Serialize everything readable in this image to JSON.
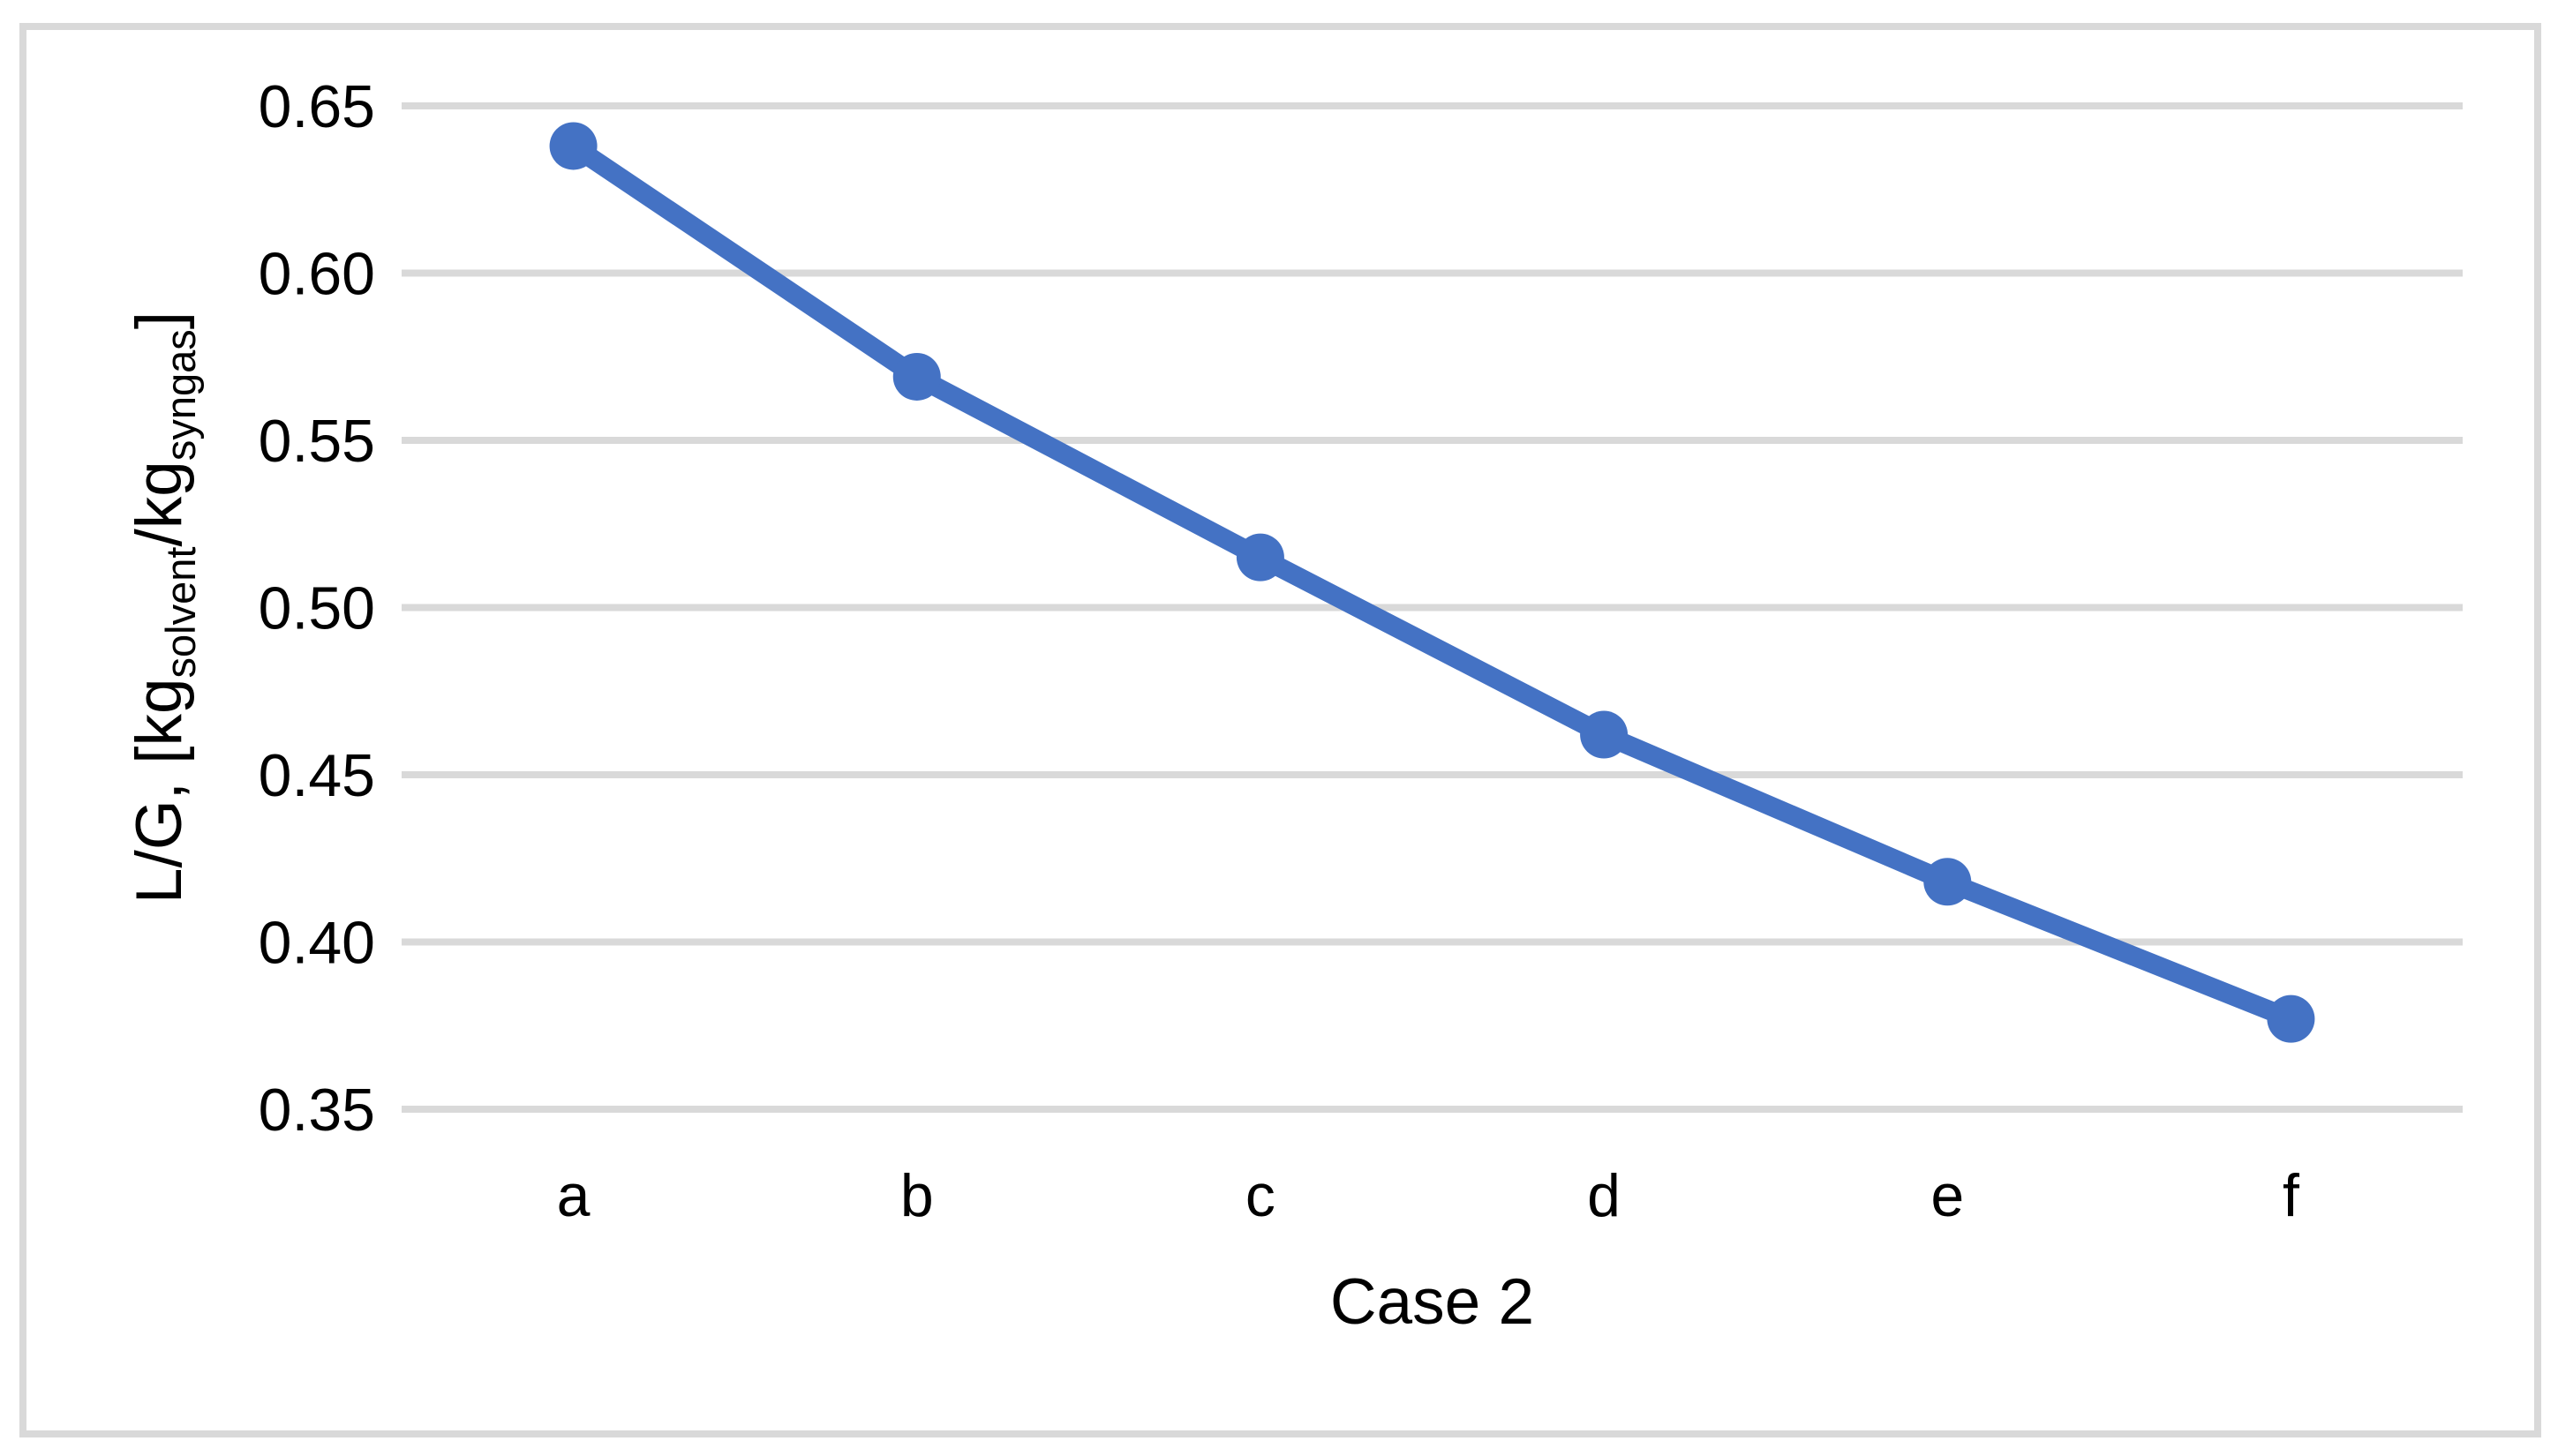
{
  "window": {
    "background": "#FFFFFF"
  },
  "chart_data": {
    "type": "line",
    "title": "",
    "categories": [
      "a",
      "b",
      "c",
      "d",
      "e",
      "f"
    ],
    "series": [
      {
        "name": "L/G",
        "color": "#4472C4",
        "values": [
          0.638,
          0.569,
          0.515,
          0.462,
          0.418,
          0.377
        ]
      }
    ],
    "xlabel": "Case 2",
    "ylabel_plain": "L/G, [kg solvent / kg syngas]",
    "ylabel_parts": [
      {
        "text": "L/G, [kg",
        "sub": false
      },
      {
        "text": "solvent",
        "sub": true
      },
      {
        "text": "/kg",
        "sub": false
      },
      {
        "text": "syngas",
        "sub": true
      },
      {
        "text": "]",
        "sub": false
      }
    ],
    "ylim": [
      0.35,
      0.65
    ],
    "y_ticks": [
      {
        "value": 0.65,
        "label": "0.65"
      },
      {
        "value": 0.6,
        "label": "0.60"
      },
      {
        "value": 0.55,
        "label": "0.55"
      },
      {
        "value": 0.5,
        "label": "0.50"
      },
      {
        "value": 0.45,
        "label": "0.45"
      },
      {
        "value": 0.4,
        "label": "0.40"
      },
      {
        "value": 0.35,
        "label": "0.35"
      }
    ],
    "grid": true,
    "legend_position": "none",
    "marker": "circle",
    "colors": {
      "line": "#4472C4",
      "gridline": "#D9D9D9",
      "frame": "#D9D9D9",
      "text": "#000000",
      "background": "#FFFFFF"
    }
  }
}
